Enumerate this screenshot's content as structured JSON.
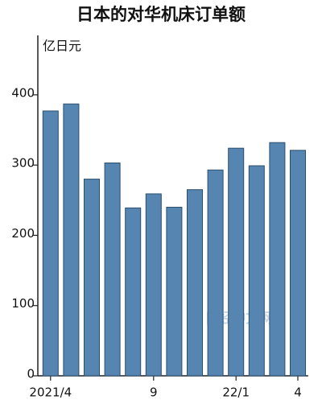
{
  "chart_data": {
    "type": "bar",
    "title": "日本的对华机床订单额",
    "y_unit": "亿日元",
    "watermark": "日经中文网",
    "categories": [
      "2021/4",
      null,
      null,
      null,
      null,
      "9",
      null,
      null,
      null,
      "22/1",
      null,
      null,
      "4"
    ],
    "values": [
      377,
      387,
      280,
      303,
      239,
      259,
      240,
      265,
      293,
      324,
      299,
      332,
      321
    ],
    "color": "#5585b0",
    "ylim": [
      0,
      480
    ],
    "yticks": [
      0,
      100,
      200,
      300,
      400
    ],
    "grid": false
  }
}
